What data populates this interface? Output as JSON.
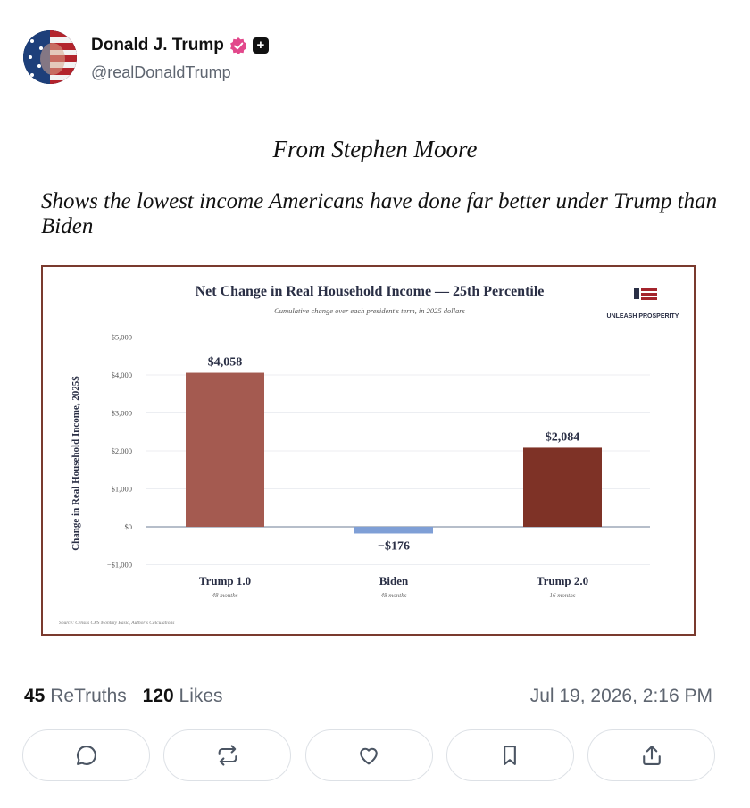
{
  "header": {
    "display_name": "Donald J. Trump",
    "handle": "@realDonaldTrump",
    "verified_icon": "verified-badge-icon",
    "extra_badge_icon": "plus-badge-icon"
  },
  "post": {
    "line1": "From Stephen Moore",
    "line2": "Shows the lowest income Americans have done far better under Trump than Biden"
  },
  "chart_data": {
    "type": "bar",
    "title": "Net Change in Real Household Income — 25th Percentile",
    "subtitle": "Cumulative change over each president's term, in 2025 dollars",
    "logo_text": "UNLEASH PROSPERITY",
    "ylabel": "Change in Real Household Income, 2025$",
    "categories": [
      "Trump 1.0",
      "Biden",
      "Trump 2.0"
    ],
    "sublabels": [
      "48 months",
      "48 months",
      "16 months"
    ],
    "values": [
      4058,
      -176,
      2084
    ],
    "data_labels": [
      "$4,058",
      "−$176",
      "$2,084"
    ],
    "bar_colors": [
      "#a45a50",
      "#7f9fd6",
      "#7e3226"
    ],
    "yticks": [
      5000,
      4000,
      3000,
      2000,
      1000,
      0,
      -1000
    ],
    "ytick_labels": [
      "$5,000",
      "$4,000",
      "$3,000",
      "$2,000",
      "$1,000",
      "$0",
      "−$1,000"
    ],
    "ylim": [
      -1000,
      5000
    ],
    "grid": true,
    "source": "Source: Census CPS Monthly Basic, Author's Calculations"
  },
  "stats": {
    "retruths_count": "45",
    "retruths_label": "ReTruths",
    "likes_count": "120",
    "likes_label": "Likes",
    "timestamp": "Jul 19, 2026, 2:16 PM"
  },
  "actions": [
    {
      "name": "reply",
      "icon": "reply-icon"
    },
    {
      "name": "retruth",
      "icon": "retruth-icon"
    },
    {
      "name": "like",
      "icon": "heart-icon"
    },
    {
      "name": "bookmark",
      "icon": "bookmark-icon"
    },
    {
      "name": "share",
      "icon": "share-icon"
    }
  ]
}
